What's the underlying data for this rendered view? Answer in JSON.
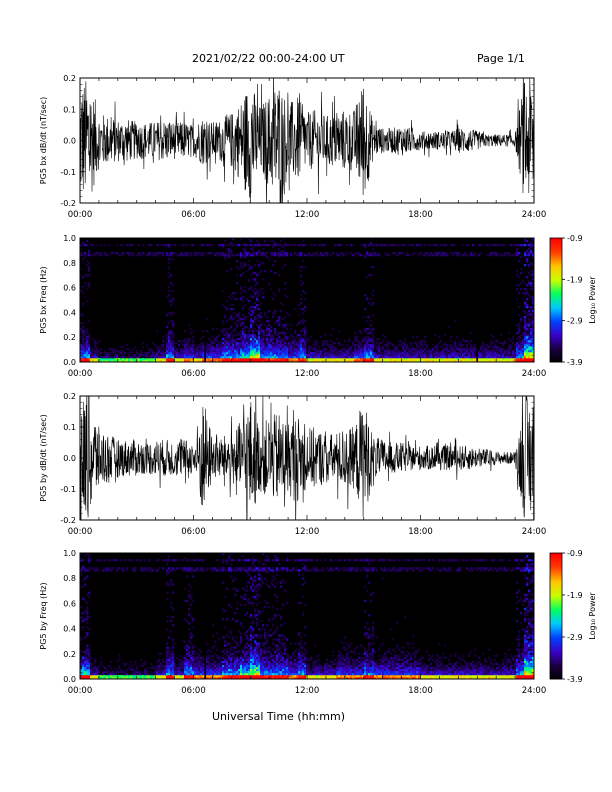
{
  "header": {
    "title": "2021/02/22  00:00-24:00 UT",
    "page": "Page 1/1"
  },
  "footer": {
    "x_axis_title": "Universal Time (hh:mm)"
  },
  "colors": {
    "background": "#ffffff",
    "waveform": "#000000",
    "spectrogram_background": "#000000",
    "colorbar_stops": [
      "#000000",
      "#1a0040",
      "#3a00c8",
      "#0040ff",
      "#00c8ff",
      "#00ff60",
      "#c8ff00",
      "#ffc800",
      "#ff4000",
      "#ff0000"
    ]
  },
  "chart_data": [
    {
      "type": "line",
      "ylabel": "PG5 bx dB/dt (nT/sec)",
      "ylim": [
        -0.2,
        0.2
      ],
      "yticks": [
        "0.2",
        "0.1",
        "0.0",
        "-0.1",
        "-0.2"
      ],
      "xlim_hours": [
        0,
        24
      ],
      "xticks": [
        "00:00",
        "06:00",
        "12:00",
        "18:00",
        "24:00"
      ],
      "series": [
        {
          "x": [
            0,
            0.5,
            1,
            1.5,
            2,
            2.5,
            3,
            3.5,
            4,
            4.5,
            5,
            5.5,
            6,
            6.5,
            7,
            7.5,
            8,
            8.5,
            9,
            9.5,
            10,
            10.5,
            11,
            11.5,
            12,
            12.5,
            13,
            13.5,
            14,
            14.5,
            15,
            15.5,
            16,
            16.5,
            17,
            17.5,
            18,
            18.5,
            19,
            19.5,
            20,
            20.5,
            21,
            21.5,
            22,
            22.5,
            23,
            23.5,
            24
          ],
          "envelope": [
            0.2,
            0.2,
            0.09,
            0.08,
            0.07,
            0.07,
            0.06,
            0.06,
            0.06,
            0.07,
            0.06,
            0.06,
            0.05,
            0.08,
            0.06,
            0.07,
            0.09,
            0.13,
            0.2,
            0.11,
            0.15,
            0.2,
            0.12,
            0.14,
            0.09,
            0.1,
            0.08,
            0.09,
            0.1,
            0.1,
            0.2,
            0.06,
            0.04,
            0.04,
            0.05,
            0.04,
            0.03,
            0.03,
            0.03,
            0.03,
            0.04,
            0.04,
            0.03,
            0.02,
            0.02,
            0.02,
            0.02,
            0.2,
            0.2
          ]
        }
      ]
    },
    {
      "type": "heatmap",
      "ylabel": "PG5 bx Freq (Hz)",
      "ylim": [
        0.0,
        1.0
      ],
      "yticks": [
        "1.0",
        "0.8",
        "0.6",
        "0.4",
        "0.2",
        "0.0"
      ],
      "xlim_hours": [
        0,
        24
      ],
      "xticks": [
        "00:00",
        "06:00",
        "12:00",
        "18:00",
        "24:00"
      ],
      "colorbar": {
        "label": "Log₁₀ Power",
        "range": [
          -3.9,
          -0.9
        ],
        "ticks": [
          "-0.9",
          "-1.9",
          "-2.9",
          "-3.9"
        ]
      },
      "activity": [
        0.5,
        0.3,
        0.2,
        0.2,
        0.2,
        0.2,
        0.2,
        0.2,
        0.3,
        0.5,
        0.3,
        0.4,
        0.3,
        0.4,
        0.4,
        0.5,
        0.5,
        0.6,
        0.8,
        0.5,
        0.5,
        0.5,
        0.4,
        0.5,
        0.3,
        0.3,
        0.3,
        0.3,
        0.3,
        0.4,
        0.5,
        0.3,
        0.3,
        0.3,
        0.3,
        0.3,
        0.3,
        0.3,
        0.3,
        0.3,
        0.3,
        0.3,
        0.3,
        0.3,
        0.3,
        0.3,
        0.5,
        0.9
      ],
      "gaps_hours": [
        6.6,
        21.0
      ]
    },
    {
      "type": "line",
      "ylabel": "PG5 by dB/dt (nT/sec)",
      "ylim": [
        -0.2,
        0.2
      ],
      "yticks": [
        "0.2",
        "0.1",
        "0.0",
        "-0.1",
        "-0.2"
      ],
      "xlim_hours": [
        0,
        24
      ],
      "xticks": [
        "00:00",
        "06:00",
        "12:00",
        "18:00",
        "24:00"
      ],
      "series": [
        {
          "x": [
            0,
            0.5,
            1,
            1.5,
            2,
            2.5,
            3,
            3.5,
            4,
            4.5,
            5,
            5.5,
            6,
            6.5,
            7,
            7.5,
            8,
            8.5,
            9,
            9.5,
            10,
            10.5,
            11,
            11.5,
            12,
            12.5,
            13,
            13.5,
            14,
            14.5,
            15,
            15.5,
            16,
            16.5,
            17,
            17.5,
            18,
            18.5,
            19,
            19.5,
            20,
            20.5,
            21,
            21.5,
            22,
            22.5,
            23,
            23.5,
            24
          ],
          "envelope": [
            0.2,
            0.2,
            0.1,
            0.08,
            0.06,
            0.06,
            0.06,
            0.05,
            0.06,
            0.06,
            0.06,
            0.06,
            0.05,
            0.2,
            0.07,
            0.07,
            0.08,
            0.12,
            0.2,
            0.11,
            0.13,
            0.15,
            0.12,
            0.14,
            0.1,
            0.1,
            0.08,
            0.08,
            0.1,
            0.1,
            0.2,
            0.07,
            0.06,
            0.05,
            0.05,
            0.04,
            0.04,
            0.04,
            0.04,
            0.04,
            0.04,
            0.04,
            0.03,
            0.03,
            0.02,
            0.02,
            0.02,
            0.2,
            0.2
          ]
        }
      ]
    },
    {
      "type": "heatmap",
      "ylabel": "PG5 by Freq (Hz)",
      "ylim": [
        0.0,
        1.0
      ],
      "yticks": [
        "1.0",
        "0.8",
        "0.6",
        "0.4",
        "0.2",
        "0.0"
      ],
      "xlim_hours": [
        0,
        24
      ],
      "xticks": [
        "00:00",
        "06:00",
        "12:00",
        "18:00",
        "24:00"
      ],
      "colorbar": {
        "label": "Log₁₀ Power",
        "range": [
          -3.9,
          -0.9
        ],
        "ticks": [
          "-0.9",
          "-1.9",
          "-2.9",
          "-3.9"
        ]
      },
      "activity": [
        0.6,
        0.3,
        0.2,
        0.2,
        0.2,
        0.2,
        0.2,
        0.2,
        0.3,
        0.5,
        0.3,
        0.5,
        0.4,
        0.4,
        0.4,
        0.5,
        0.5,
        0.6,
        0.8,
        0.5,
        0.5,
        0.5,
        0.4,
        0.5,
        0.3,
        0.3,
        0.3,
        0.4,
        0.4,
        0.4,
        0.5,
        0.4,
        0.4,
        0.4,
        0.4,
        0.4,
        0.3,
        0.3,
        0.3,
        0.3,
        0.3,
        0.3,
        0.3,
        0.3,
        0.3,
        0.3,
        0.5,
        0.9
      ],
      "gaps_hours": [
        6.6
      ]
    }
  ]
}
